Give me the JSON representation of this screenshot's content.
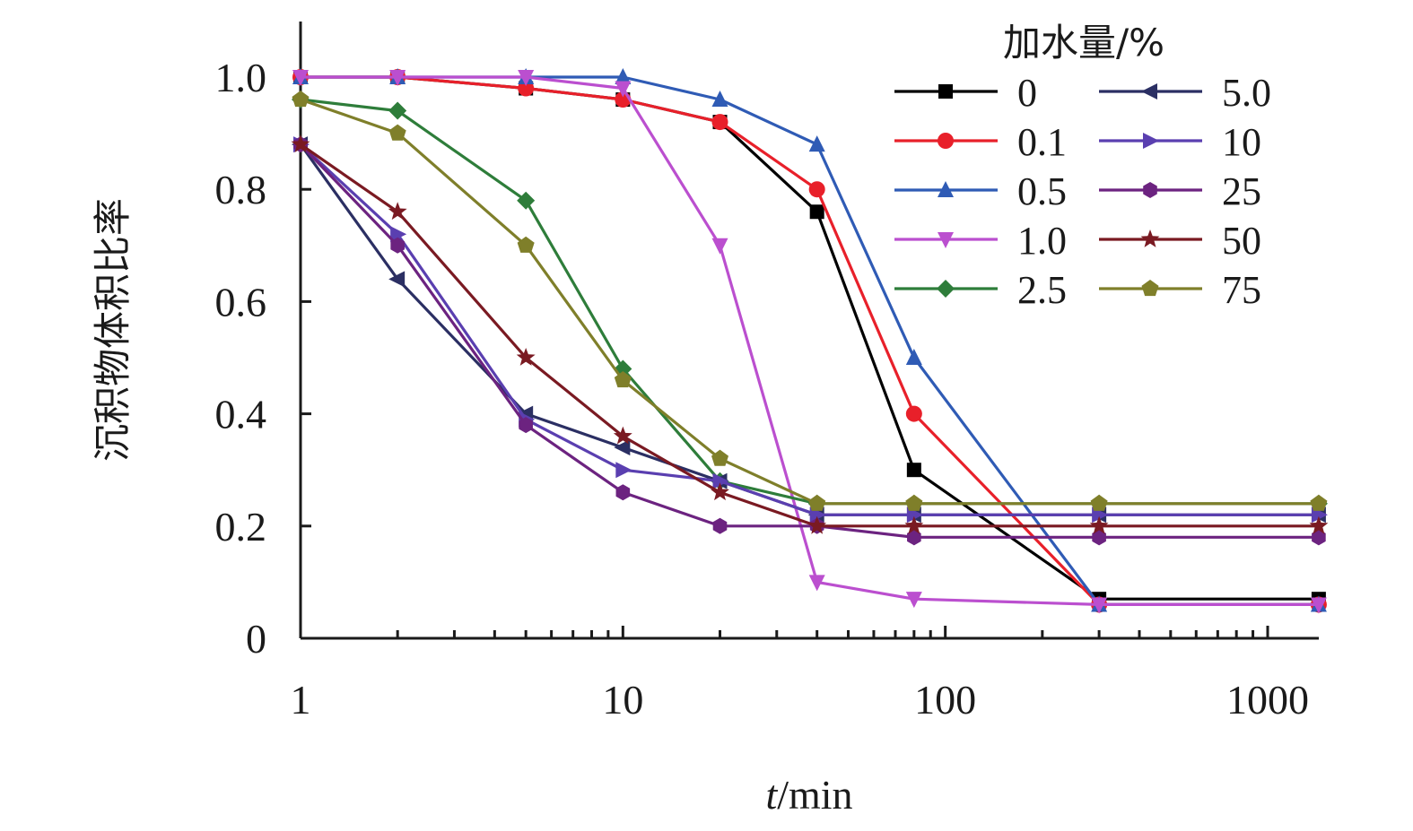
{
  "chart_data": {
    "type": "line",
    "xscale": "log",
    "xlabel_italic": "t",
    "xlabel_rest": "/min",
    "ylabel": "沉积物体积比率",
    "xlim": [
      1,
      1500
    ],
    "ylim": [
      0,
      1.1
    ],
    "xticks": [
      1,
      10,
      100,
      1000
    ],
    "xtick_labels": [
      "1",
      "10",
      "100",
      "1000"
    ],
    "yticks": [
      0,
      0.2,
      0.4,
      0.6,
      0.8,
      1.0
    ],
    "ytick_labels": [
      "0",
      "0.2",
      "0.4",
      "0.6",
      "0.8",
      "1.0"
    ],
    "grid": false,
    "legend_title": "加水量/%",
    "legend_position": "top-right",
    "series": [
      {
        "name": "0",
        "color": "#000000",
        "marker": "square",
        "x": [
          1,
          2,
          5,
          10,
          20,
          40,
          80,
          300,
          1440
        ],
        "y": [
          1.0,
          1.0,
          0.98,
          0.96,
          0.92,
          0.76,
          0.3,
          0.07,
          0.07
        ]
      },
      {
        "name": "0.1",
        "color": "#e8202a",
        "marker": "circle",
        "x": [
          1,
          2,
          5,
          10,
          20,
          40,
          80,
          300,
          1440
        ],
        "y": [
          1.0,
          1.0,
          0.98,
          0.96,
          0.92,
          0.8,
          0.4,
          0.06,
          0.06
        ]
      },
      {
        "name": "0.5",
        "color": "#2f5bb5",
        "marker": "triangle-up",
        "x": [
          1,
          2,
          5,
          10,
          20,
          40,
          80,
          300,
          1440
        ],
        "y": [
          1.0,
          1.0,
          1.0,
          1.0,
          0.96,
          0.88,
          0.5,
          0.06,
          0.06
        ]
      },
      {
        "name": "1.0",
        "color": "#bb4fcf",
        "marker": "triangle-down",
        "x": [
          1,
          2,
          5,
          10,
          20,
          40,
          80,
          300,
          1440
        ],
        "y": [
          1.0,
          1.0,
          1.0,
          0.98,
          0.7,
          0.1,
          0.07,
          0.06,
          0.06
        ]
      },
      {
        "name": "2.5",
        "color": "#2e7d3a",
        "marker": "diamond",
        "x": [
          1,
          2,
          5,
          10,
          20,
          40,
          80,
          300,
          1440
        ],
        "y": [
          0.96,
          0.94,
          0.78,
          0.48,
          0.28,
          0.24,
          0.24,
          0.24,
          0.24
        ]
      },
      {
        "name": "5.0",
        "color": "#2b2f63",
        "marker": "triangle-left",
        "x": [
          1,
          2,
          5,
          10,
          20,
          40,
          80,
          300,
          1440
        ],
        "y": [
          0.88,
          0.64,
          0.4,
          0.34,
          0.28,
          0.22,
          0.22,
          0.22,
          0.22
        ]
      },
      {
        "name": "10",
        "color": "#5a3fb0",
        "marker": "triangle-right",
        "x": [
          1,
          2,
          5,
          10,
          20,
          40,
          80,
          300,
          1440
        ],
        "y": [
          0.88,
          0.72,
          0.39,
          0.3,
          0.28,
          0.22,
          0.22,
          0.22,
          0.22
        ]
      },
      {
        "name": "25",
        "color": "#6c2380",
        "marker": "hexagon",
        "x": [
          1,
          2,
          5,
          10,
          20,
          40,
          80,
          300,
          1440
        ],
        "y": [
          0.88,
          0.7,
          0.38,
          0.26,
          0.2,
          0.2,
          0.18,
          0.18,
          0.18
        ]
      },
      {
        "name": "50",
        "color": "#7a1a22",
        "marker": "star",
        "x": [
          1,
          2,
          5,
          10,
          20,
          40,
          80,
          300,
          1440
        ],
        "y": [
          0.88,
          0.76,
          0.5,
          0.36,
          0.26,
          0.2,
          0.2,
          0.2,
          0.2
        ]
      },
      {
        "name": "75",
        "color": "#7f7f2a",
        "marker": "pentagon",
        "x": [
          1,
          2,
          5,
          10,
          20,
          40,
          80,
          300,
          1440
        ],
        "y": [
          0.96,
          0.9,
          0.7,
          0.46,
          0.32,
          0.24,
          0.24,
          0.24,
          0.24
        ]
      }
    ]
  }
}
